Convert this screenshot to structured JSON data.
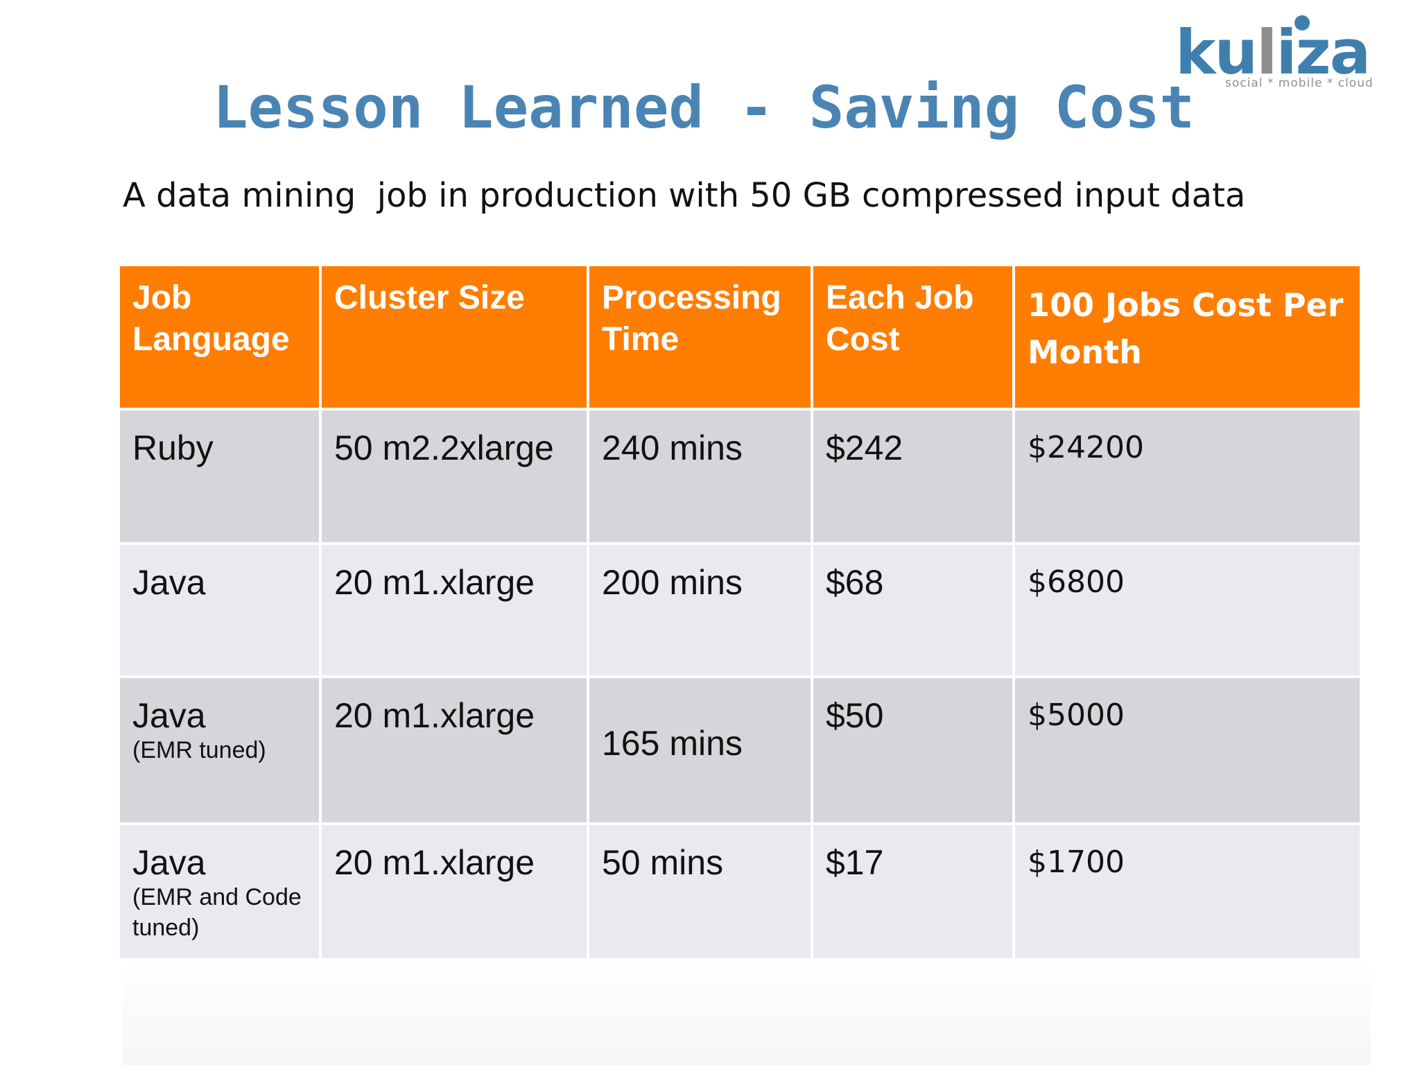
{
  "logo": {
    "brand_first": "ku",
    "brand_mid": "l",
    "brand_last": "iza",
    "tagline": "social * mobile * cloud"
  },
  "title": "Lesson Learned - Saving Cost",
  "subtitle": "A data mining  job in production with 50 GB compressed input data",
  "table": {
    "headers": [
      {
        "line1": "Job",
        "line2": "Language"
      },
      {
        "line1": "Cluster Size",
        "line2": ""
      },
      {
        "line1": "Processing",
        "line2": "Time"
      },
      {
        "line1": "Each Job",
        "line2": "Cost"
      },
      {
        "line1": "100 Jobs Cost Per",
        "line2": "Month"
      }
    ],
    "rows": [
      {
        "language": "Ruby",
        "note": "",
        "cluster": "50 m2.2xlarge",
        "time": "240 mins",
        "job_cost": "$242",
        "monthly_cost": "$24200"
      },
      {
        "language": "Java",
        "note": "",
        "cluster": "20 m1.xlarge",
        "time": "200 mins",
        "job_cost": "$68",
        "monthly_cost": "$6800"
      },
      {
        "language": "Java",
        "note": "(EMR tuned)",
        "cluster": "20 m1.xlarge",
        "time": "165 mins",
        "job_cost": "$50",
        "monthly_cost": "$5000"
      },
      {
        "language": "Java",
        "note": "(EMR and Code tuned)",
        "cluster": "20 m1.xlarge",
        "time": "50 mins",
        "job_cost": "$17",
        "monthly_cost": "$1700"
      }
    ]
  },
  "colors": {
    "title": "#4a84b4",
    "header_bg": "#ff7d00",
    "row_odd": "#d6d5da",
    "row_even": "#ebe9ef",
    "logo_blue": "#3f7fae"
  }
}
